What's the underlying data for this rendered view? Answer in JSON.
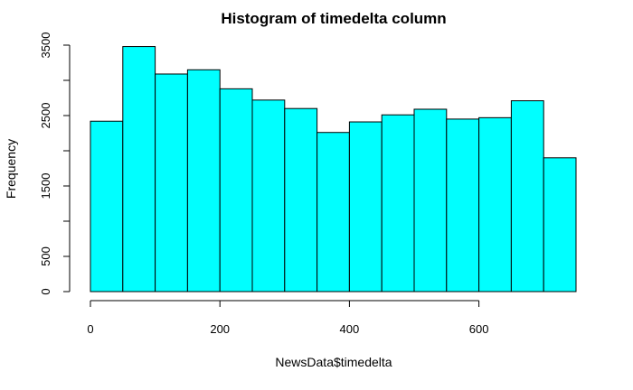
{
  "chart_data": {
    "type": "bar",
    "title": "Histogram of timedelta column",
    "xlabel": "NewsData$timedelta",
    "ylabel": "Frequency",
    "bin_edges": [
      0,
      50,
      100,
      150,
      200,
      250,
      300,
      350,
      400,
      450,
      500,
      550,
      600,
      650,
      700,
      750
    ],
    "values": [
      2420,
      3480,
      3090,
      3150,
      2880,
      2720,
      2600,
      2260,
      2410,
      2510,
      2590,
      2450,
      2470,
      2710,
      1900
    ],
    "xlim": [
      0,
      750
    ],
    "ylim": [
      0,
      3500
    ],
    "x_ticks": [
      0,
      200,
      400,
      600
    ],
    "y_ticks": [
      0,
      500,
      1500,
      2500,
      3500
    ],
    "y_minor_ticks": [
      1000,
      2000,
      3000
    ],
    "bar_color": "#00FFFF",
    "edge_color": "#000000",
    "grid": false
  }
}
